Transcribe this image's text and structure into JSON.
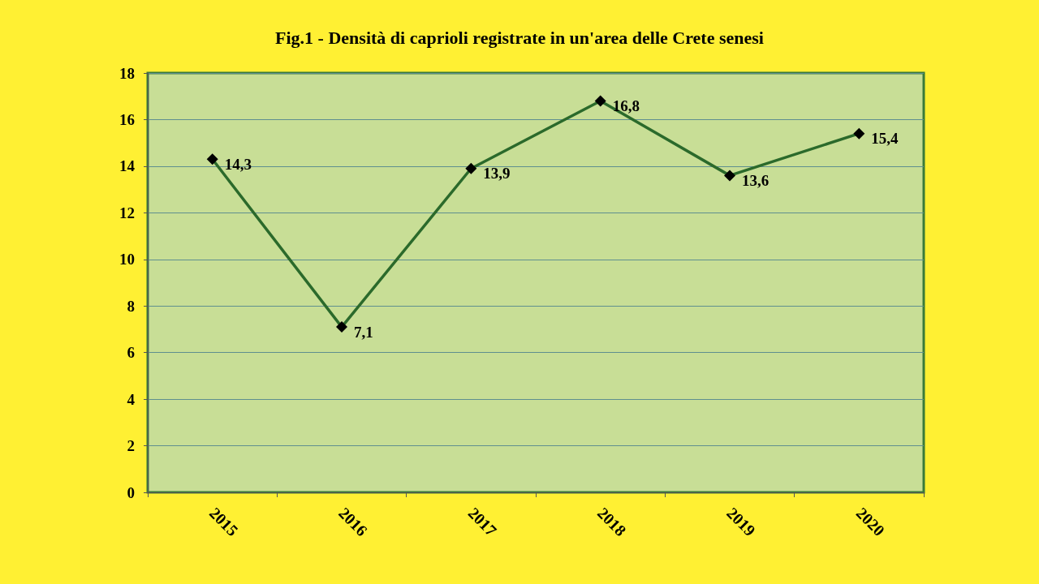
{
  "chart_data": {
    "type": "line",
    "title": "Fig.1 - Densità di caprioli registrate in un'area delle Crete senesi",
    "categories": [
      "2015",
      "2016",
      "2017",
      "2018",
      "2019",
      "2020"
    ],
    "values": [
      14.3,
      7.1,
      13.9,
      16.8,
      13.6,
      15.4
    ],
    "value_labels": [
      "14,3",
      "7,1",
      "13,9",
      "16,8",
      "13,6",
      "15,4"
    ],
    "color": "#2b6a2b",
    "marker": "diamond",
    "line_style": "solid",
    "ylim": [
      0,
      18
    ],
    "yticks": [
      0,
      2,
      4,
      6,
      8,
      10,
      12,
      14,
      16,
      18
    ],
    "grid": "y"
  }
}
